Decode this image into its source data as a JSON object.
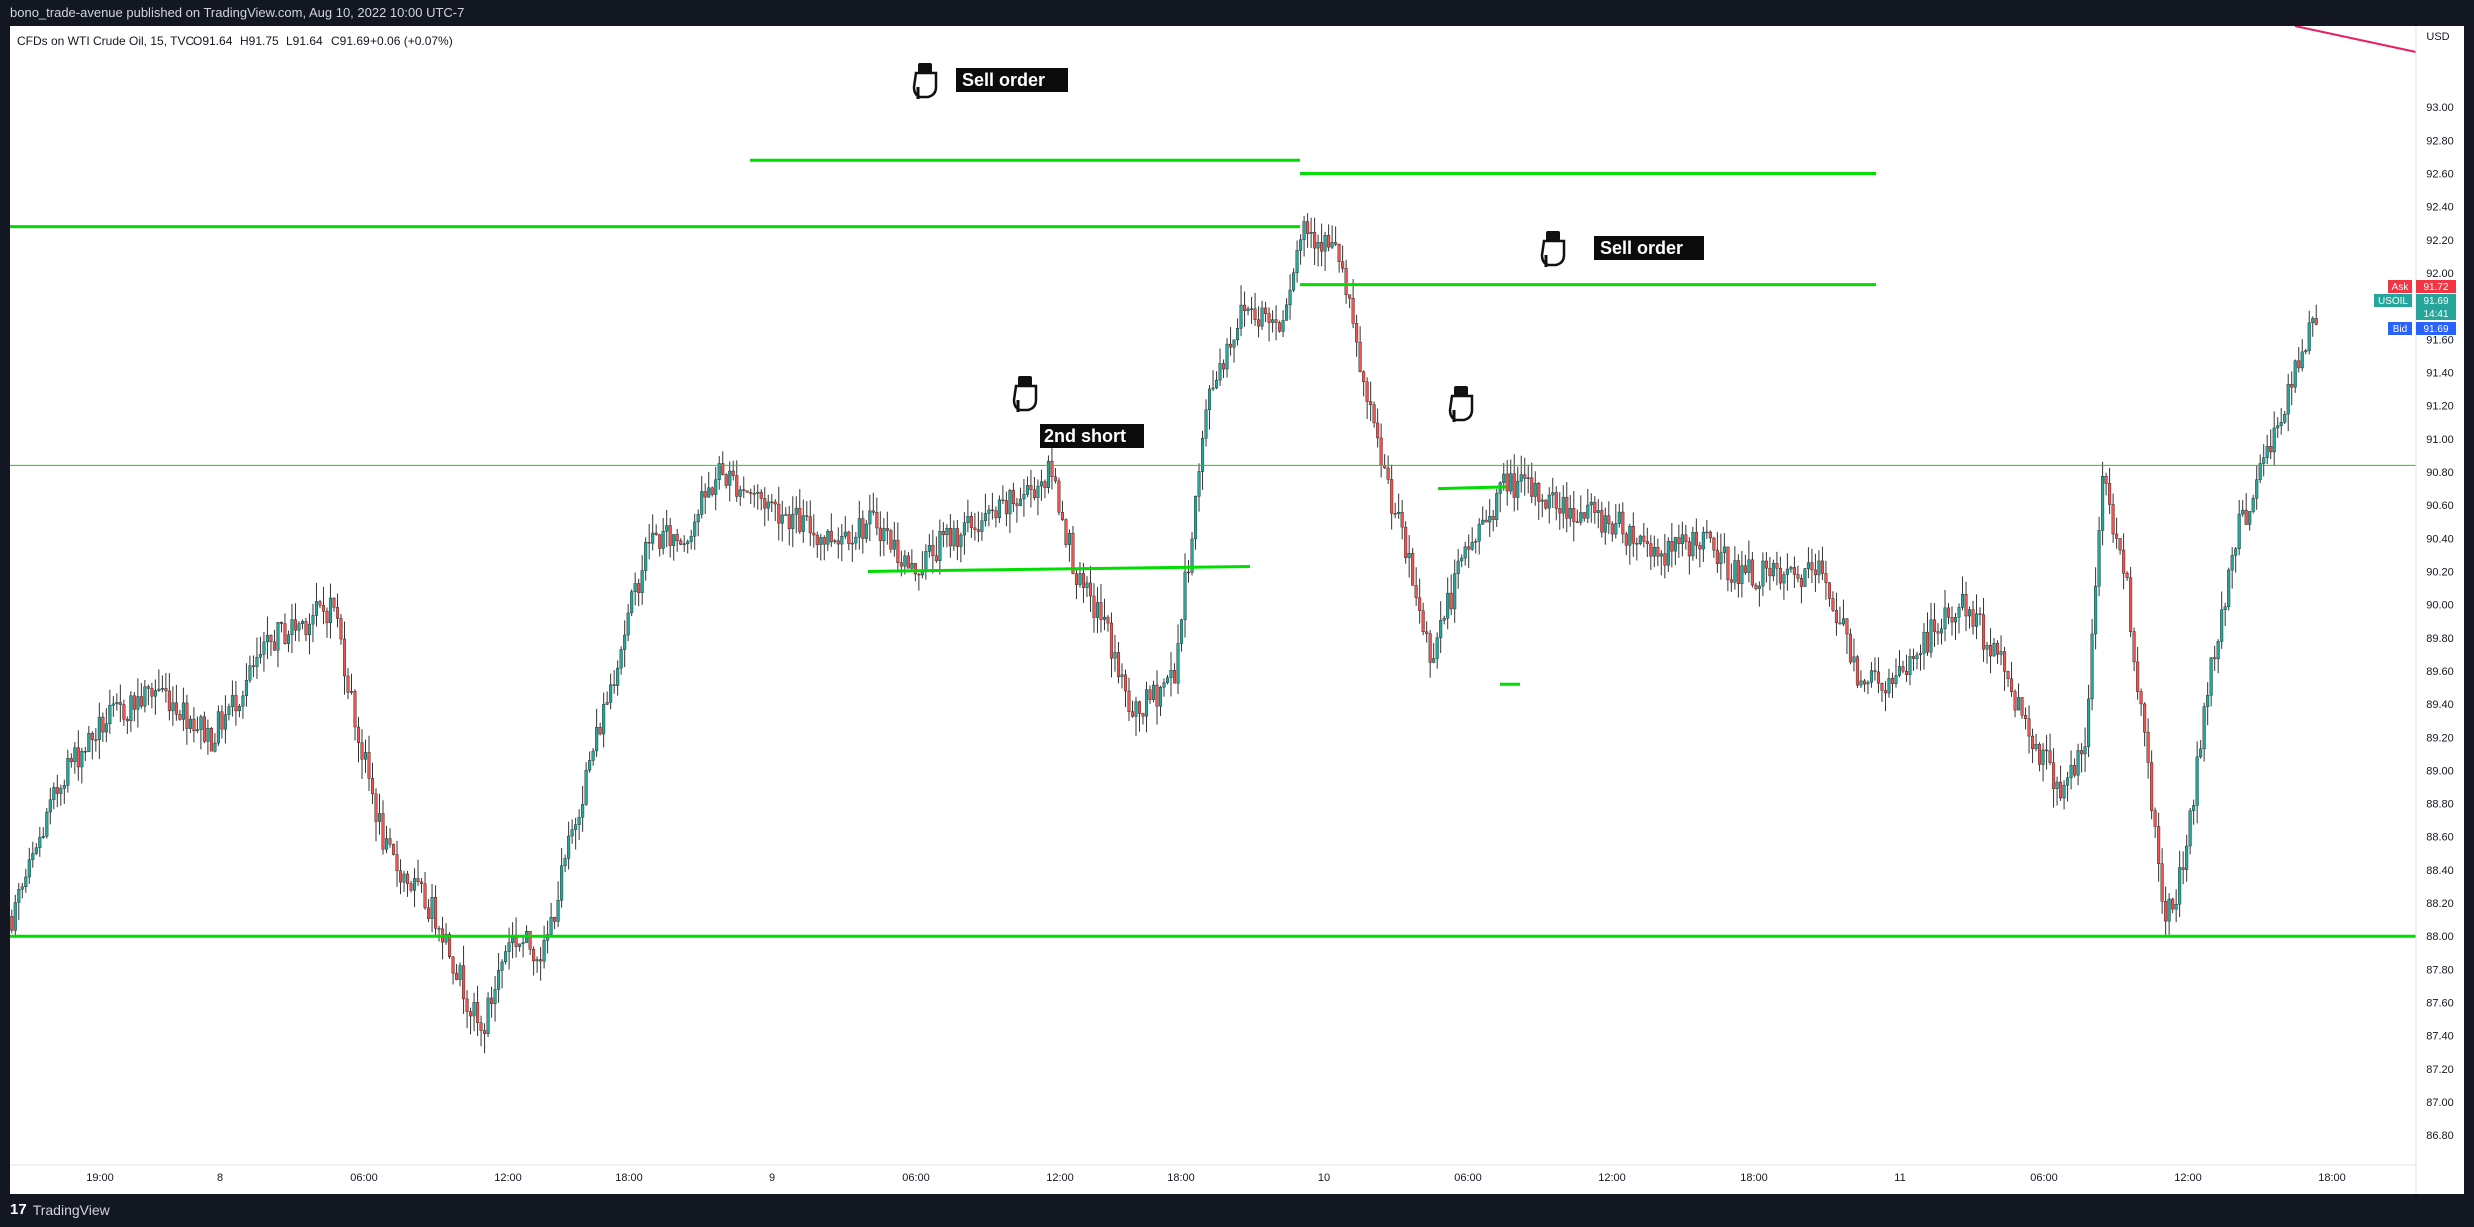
{
  "header": {
    "publish_text": "bono_trade-avenue published on TradingView.com, Aug 10, 2022 10:00 UTC-7"
  },
  "footer": {
    "brand_logo": "17",
    "brand_name": "TradingView"
  },
  "chart_data": {
    "type": "candlestick",
    "symbol_info": "CFDs on WTI Crude Oil, 15, TVC",
    "ohlc": {
      "o": "O91.64",
      "h": "H91.75",
      "l": "L91.64",
      "c": "C91.69",
      "change": "+0.06 (+0.07%)"
    },
    "currency": "USD",
    "ylim": [
      86.62,
      93.49
    ],
    "y_ticks": [
      "93.00",
      "92.80",
      "92.60",
      "92.40",
      "92.20",
      "92.00",
      "91.80",
      "91.60",
      "91.40",
      "91.20",
      "91.00",
      "90.80",
      "90.60",
      "90.40",
      "90.20",
      "90.00",
      "89.80",
      "89.60",
      "89.40",
      "89.20",
      "89.00",
      "88.80",
      "88.60",
      "88.40",
      "88.20",
      "88.00",
      "87.80",
      "87.60",
      "87.40",
      "87.20",
      "87.00",
      "86.80"
    ],
    "x_ticks": [
      "19:00",
      "8",
      "06:00",
      "12:00",
      "18:00",
      "9",
      "06:00",
      "12:00",
      "18:00",
      "10",
      "06:00",
      "12:00",
      "18:00",
      "11",
      "06:00",
      "12:00",
      "18:00"
    ],
    "price_labels": {
      "ask": {
        "label": "Ask",
        "value": "91.72",
        "color": "#f23645"
      },
      "last": {
        "label": "USOIL",
        "value": "91.69",
        "countdown": "14:41",
        "color": "#26a69a"
      },
      "bid": {
        "label": "Bid",
        "value": "91.69",
        "color": "#2962ff"
      }
    },
    "colors": {
      "up": "#26a69a",
      "down": "#ef5350",
      "wick": "#333333",
      "level_line": "#00dd00",
      "trend_line": "#e91e63"
    },
    "horizontal_levels": [
      92.28,
      91.93,
      92.6,
      88.0,
      90.84
    ],
    "annotations": [
      {
        "text": "Sell order",
        "icon": "pointing-hand-icon"
      },
      {
        "text": "Sell order",
        "icon": "pointing-hand-icon"
      },
      {
        "text": "2nd short",
        "icon": "pointing-hand-icon"
      },
      {
        "text": "",
        "icon": "pointing-hand-icon"
      }
    ],
    "anchors": [
      {
        "t": 0,
        "p": 88.4
      },
      {
        "t": 10,
        "p": 87.95
      },
      {
        "t": 18,
        "p": 88.4
      },
      {
        "t": 28,
        "p": 89.0
      },
      {
        "t": 40,
        "p": 89.3
      },
      {
        "t": 55,
        "p": 89.5
      },
      {
        "t": 70,
        "p": 89.2
      },
      {
        "t": 88,
        "p": 89.8
      },
      {
        "t": 105,
        "p": 90.0
      },
      {
        "t": 112,
        "p": 89.2
      },
      {
        "t": 120,
        "p": 88.5
      },
      {
        "t": 135,
        "p": 88.1
      },
      {
        "t": 147,
        "p": 87.4
      },
      {
        "t": 155,
        "p": 88.0
      },
      {
        "t": 165,
        "p": 87.9
      },
      {
        "t": 175,
        "p": 88.8
      },
      {
        "t": 185,
        "p": 89.6
      },
      {
        "t": 195,
        "p": 90.4
      },
      {
        "t": 205,
        "p": 90.4
      },
      {
        "t": 215,
        "p": 90.8
      },
      {
        "t": 230,
        "p": 90.6
      },
      {
        "t": 245,
        "p": 90.4
      },
      {
        "t": 260,
        "p": 90.5
      },
      {
        "t": 270,
        "p": 90.2
      },
      {
        "t": 280,
        "p": 90.4
      },
      {
        "t": 295,
        "p": 90.55
      },
      {
        "t": 310,
        "p": 90.8
      },
      {
        "t": 318,
        "p": 90.1
      },
      {
        "t": 325,
        "p": 89.9
      },
      {
        "t": 333,
        "p": 89.3
      },
      {
        "t": 345,
        "p": 89.6
      },
      {
        "t": 355,
        "p": 91.3
      },
      {
        "t": 365,
        "p": 91.8
      },
      {
        "t": 375,
        "p": 91.7
      },
      {
        "t": 382,
        "p": 92.3
      },
      {
        "t": 392,
        "p": 92.1
      },
      {
        "t": 400,
        "p": 91.2
      },
      {
        "t": 410,
        "p": 90.4
      },
      {
        "t": 418,
        "p": 89.7
      },
      {
        "t": 428,
        "p": 90.3
      },
      {
        "t": 440,
        "p": 90.75
      },
      {
        "t": 455,
        "p": 90.6
      },
      {
        "t": 470,
        "p": 90.5
      },
      {
        "t": 485,
        "p": 90.3
      },
      {
        "t": 495,
        "p": 90.4
      },
      {
        "t": 505,
        "p": 90.2
      },
      {
        "t": 520,
        "p": 90.15
      },
      {
        "t": 530,
        "p": 90.2
      },
      {
        "t": 540,
        "p": 89.6
      },
      {
        "t": 550,
        "p": 89.5
      },
      {
        "t": 560,
        "p": 89.8
      },
      {
        "t": 570,
        "p": 90.0
      },
      {
        "t": 580,
        "p": 89.7
      },
      {
        "t": 590,
        "p": 89.2
      },
      {
        "t": 598,
        "p": 88.9
      },
      {
        "t": 605,
        "p": 89.1
      },
      {
        "t": 610,
        "p": 90.8
      },
      {
        "t": 617,
        "p": 90.1
      },
      {
        "t": 623,
        "p": 89.0
      },
      {
        "t": 628,
        "p": 88.1
      },
      {
        "t": 633,
        "p": 88.4
      },
      {
        "t": 640,
        "p": 89.5
      },
      {
        "t": 648,
        "p": 90.4
      },
      {
        "t": 655,
        "p": 90.8
      },
      {
        "t": 662,
        "p": 91.2
      },
      {
        "t": 670,
        "p": 91.69
      }
    ],
    "n_bars": 671
  }
}
